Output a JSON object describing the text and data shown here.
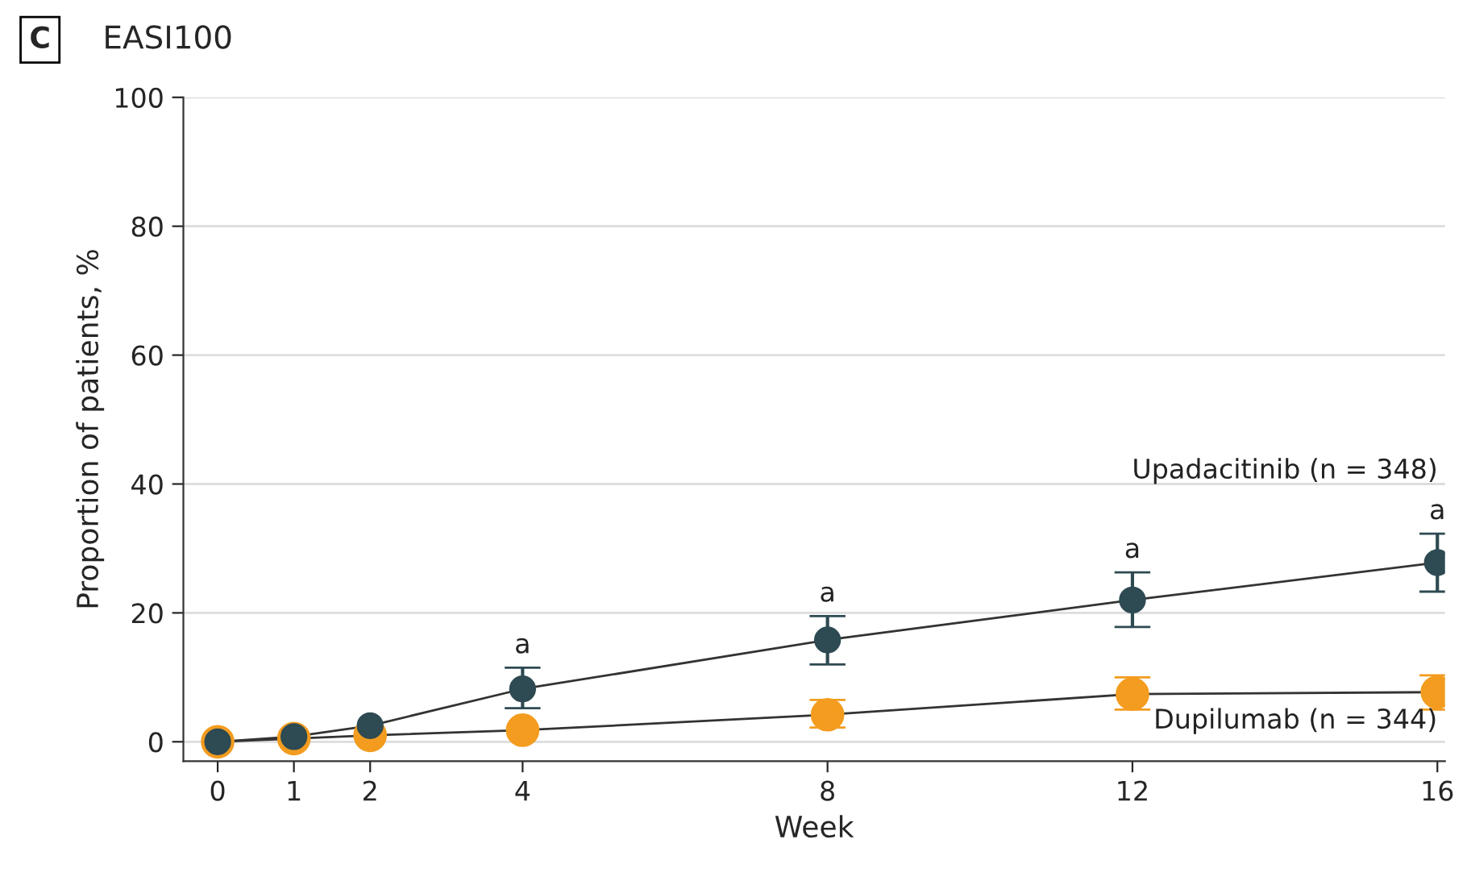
{
  "chart_data": {
    "type": "line",
    "title": "EASI100",
    "xlabel": "Week",
    "ylabel": "Proportion of patients, %",
    "x": [
      0,
      1,
      2,
      4,
      8,
      12,
      16
    ],
    "series": [
      {
        "name": "Upadacitinib (n = 348)",
        "color": "#2e4a52",
        "values": [
          0,
          0.8,
          2.5,
          8.2,
          15.8,
          22,
          27.8
        ],
        "errors": [
          null,
          null,
          null,
          [
            5.2,
            11.5
          ],
          [
            12,
            19.5
          ],
          [
            17.8,
            26.3
          ],
          [
            23.3,
            32.3
          ]
        ]
      },
      {
        "name": "Dupilumab (n = 344)",
        "color": "#f39c1f",
        "values": [
          0,
          0.5,
          1,
          1.8,
          4.2,
          7.4,
          7.7
        ],
        "errors": [
          null,
          null,
          null,
          null,
          [
            2.2,
            6.5
          ],
          [
            5,
            10
          ],
          [
            5,
            10.3
          ]
        ]
      }
    ],
    "annotations": [
      "C",
      {
        "text": "a",
        "x": 4,
        "y": 11.5
      },
      {
        "text": "a",
        "x": 8,
        "y": 19.5
      },
      {
        "text": "a",
        "x": 12,
        "y": 26.3
      },
      {
        "text": "a",
        "x": 16,
        "y": 32.3
      }
    ],
    "xlim": [
      -0.45,
      16.1
    ],
    "xticks": [
      0,
      1,
      2,
      4,
      8,
      12,
      16
    ],
    "ylim": [
      -3,
      100
    ],
    "yticks": [
      0,
      20,
      40,
      60,
      80,
      100
    ],
    "grid": "y",
    "legend": false,
    "marker": "circle",
    "line_style": "solid"
  }
}
